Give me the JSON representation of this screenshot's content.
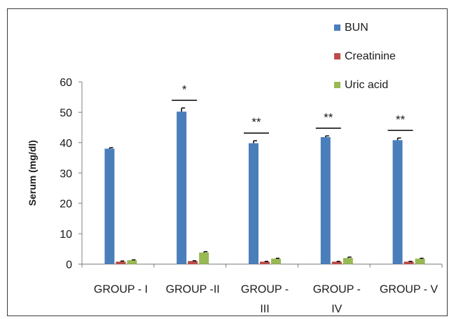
{
  "chart_data": {
    "type": "bar",
    "ylabel": "Serum (mg/dl)",
    "xlabel": "",
    "title": "",
    "ylim": [
      0,
      60
    ],
    "yticks": [
      0,
      10,
      20,
      30,
      40,
      50,
      60
    ],
    "grid": false,
    "legend_position": "top-right",
    "categories": [
      [
        "GROUP - I"
      ],
      [
        "GROUP -II"
      ],
      [
        "GROUP -",
        "III"
      ],
      [
        "GROUP -",
        "IV"
      ],
      [
        "GROUP - V"
      ]
    ],
    "series": [
      {
        "name": "BUN",
        "color": "#4a7ebb",
        "values": [
          38.0,
          50.2,
          39.8,
          41.8,
          40.8
        ],
        "errors": [
          0.3,
          1.2,
          0.8,
          0.4,
          0.7
        ]
      },
      {
        "name": "Creatinine",
        "color": "#be4b48",
        "values": [
          0.8,
          1.0,
          0.8,
          0.8,
          0.8
        ],
        "errors": [
          0.2,
          0.1,
          0.1,
          0.1,
          0.1
        ]
      },
      {
        "name": "Uric acid",
        "color": "#98b954",
        "values": [
          1.3,
          3.8,
          1.8,
          2.0,
          1.8
        ],
        "errors": [
          0.1,
          0.3,
          0.1,
          0.3,
          0.1
        ]
      }
    ],
    "significance": [
      "",
      "*",
      "**",
      "**",
      "**"
    ]
  }
}
